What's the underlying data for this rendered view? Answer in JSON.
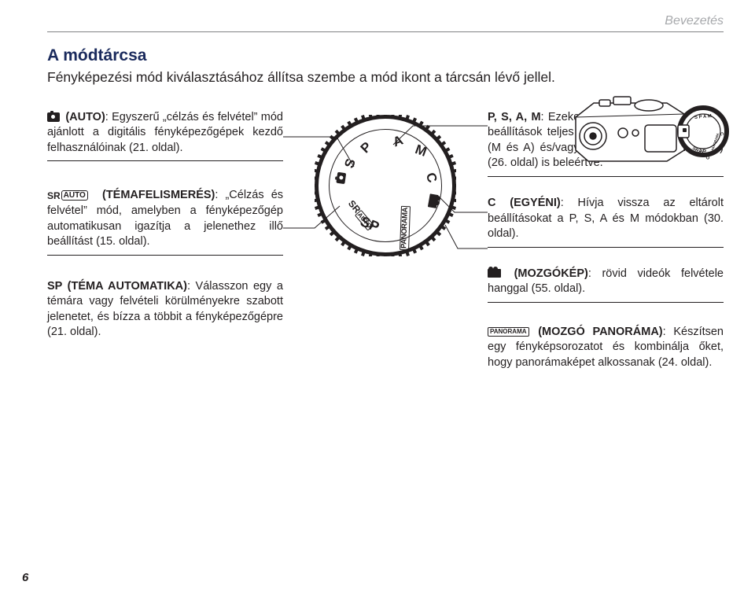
{
  "header": {
    "section": "Bevezetés"
  },
  "title": "A módtárcsa",
  "subtitle": "Fényképezési mód kiválasztásához állítsa szembe a mód ikont a tárcsán lévő jellel.",
  "left": {
    "auto": {
      "label": "(AUTO)",
      "text": ": Egyszerű „célzás és felvétel” mód ajánlott a digitális fényképezőgépek kezdő felhasználóinak (21. oldal)."
    },
    "srauto": {
      "prefix": "SR",
      "box": "AUTO",
      "label": "(TÉMAFELISMERÉS)",
      "text": ": „Célzás és felvétel” mód, amelyben a fényképezőgép automatikusan igazítja a jelenethez illő beállítást (15. oldal)."
    },
    "sp": {
      "label": "SP (TÉMA AUTOMATIKA)",
      "text": ": Válasszon egy a témára vagy felvételi körülményekre szabott jelenetet, és bízza a többit a fényképezőgépre (21. oldal)."
    }
  },
  "right": {
    "psam": {
      "label": "P, S, A, M",
      "text": ": Ezeket válassza a fényképezőgép beállítások teljes szabályozásához, a blendét (M és A) és/vagy a zársebességet (M és S) (26. oldal) is beleértve."
    },
    "c": {
      "label": "C (EGYÉNI)",
      "text": ": Hívja vissza az eltárolt beállításokat a P, S, A és M módokban (30. oldal)."
    },
    "movie": {
      "label": "(MOZGÓKÉP)",
      "text": ": rövid videók felvétele hanggal (55. oldal)."
    },
    "panorama": {
      "icon": "PANORAMA",
      "label": "(MOZGÓ PANORÁMA)",
      "text": ": Készítsen egy fényképsorozatot és kombinálja őket, hogy panorámaképet alkossanak (24. oldal)."
    }
  },
  "dial": {
    "labels": {
      "s": "S",
      "p": "P",
      "a": "A",
      "m": "M",
      "c": "C",
      "sr": "SR",
      "auto": "AUTO",
      "sp": "SP",
      "pano": "PANORAMA"
    }
  },
  "camera_top": {
    "labels": {
      "s": "S",
      "p": "P",
      "a": "A",
      "m": "M",
      "c": "C",
      "sp": "SP",
      "sr": "SRAUTO",
      "pano": "PANORAMA"
    }
  },
  "page": "6",
  "colors": {
    "accent": "#1a2a5c",
    "muted": "#a7a9ac",
    "rule": "#808285",
    "text": "#231f20"
  }
}
